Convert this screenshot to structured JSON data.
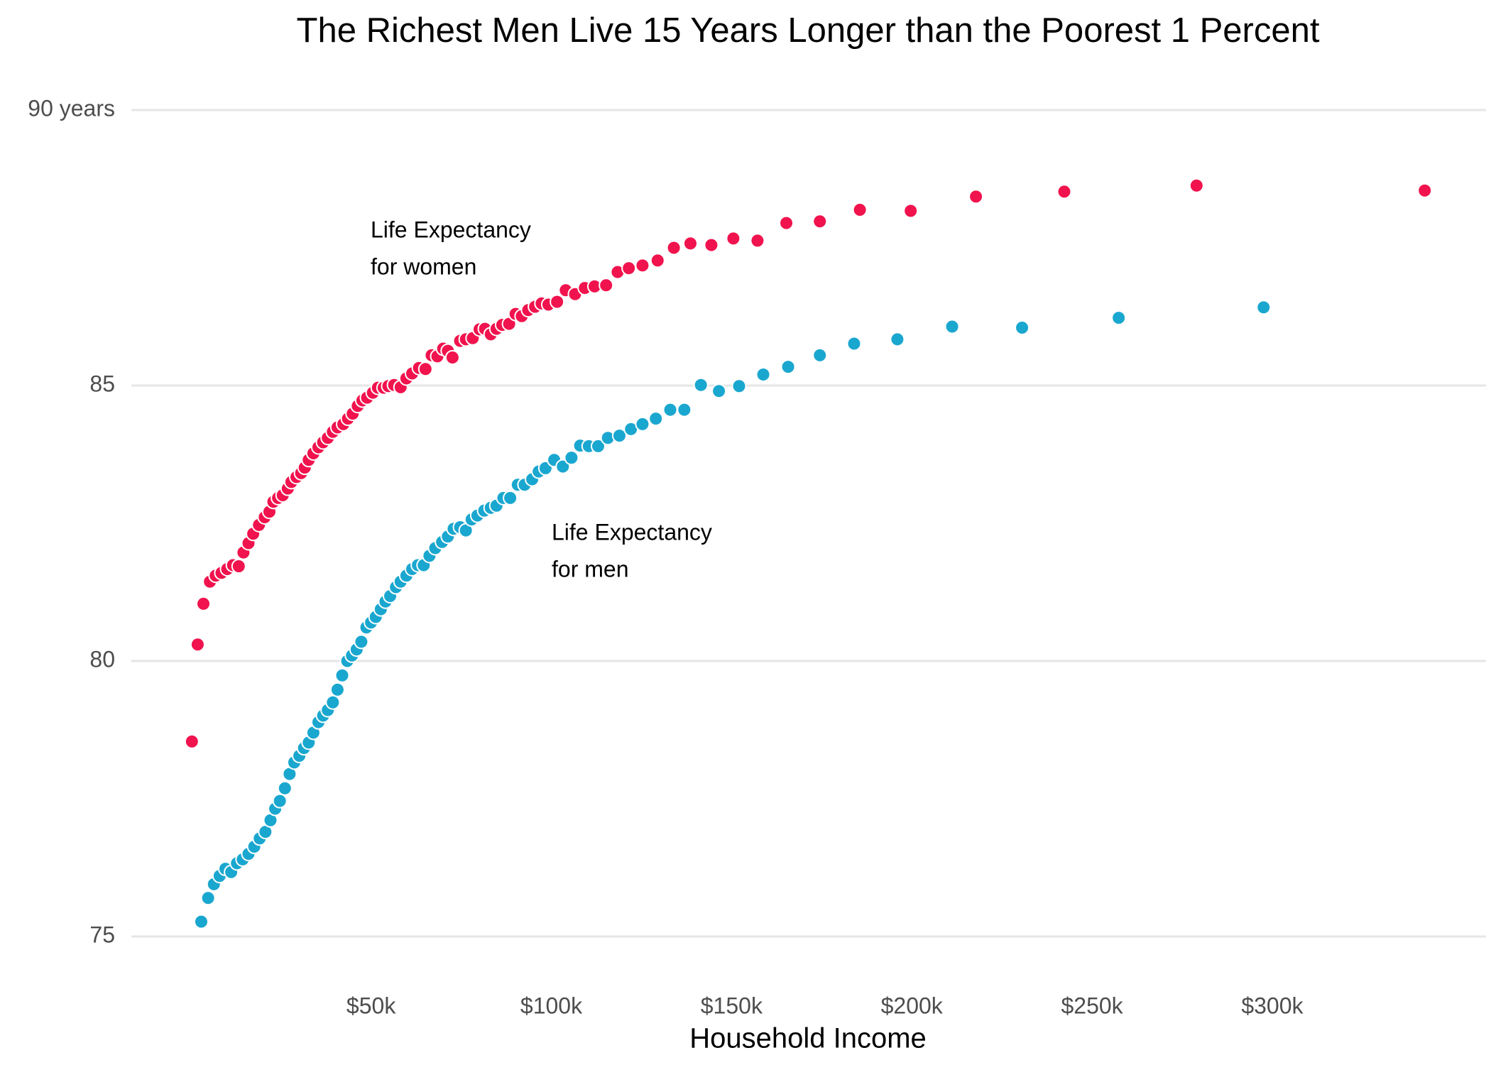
{
  "chart_data": {
    "type": "scatter",
    "title": "The Richest Men Live 15 Years Longer than the Poorest 1 Percent",
    "x_label": "Household Income",
    "xlim": [
      -16.5,
      359.3
    ],
    "ylim": [
      74.4,
      90.2
    ],
    "xticks": [
      {
        "value": 50,
        "label": "$50k"
      },
      {
        "value": 100,
        "label": "$100k"
      },
      {
        "value": 150,
        "label": "$150k"
      },
      {
        "value": 200,
        "label": "$200k"
      },
      {
        "value": 250,
        "label": "$250k"
      },
      {
        "value": 300,
        "label": "$300k"
      }
    ],
    "yticks": [
      75,
      80,
      85,
      {
        "value": 90,
        "label": "90 years"
      }
    ],
    "grid": true,
    "annotations": [
      [
        "Life Expectancy",
        "for women"
      ],
      [
        "Life Expectancy",
        "for men"
      ]
    ],
    "series": [
      {
        "color": "#f0134d",
        "x": [
          0.3,
          1.9,
          3.5,
          5.3,
          6.9,
          8.5,
          10.1,
          11.7,
          13.3,
          14.6,
          16.0,
          17.3,
          18.9,
          20.5,
          21.8,
          22.9,
          24.2,
          25.5,
          26.9,
          27.9,
          29.3,
          30.6,
          31.6,
          32.7,
          34.0,
          35.4,
          36.7,
          38.0,
          39.4,
          40.7,
          42.3,
          43.6,
          44.9,
          46.3,
          47.6,
          48.9,
          50.5,
          51.9,
          53.5,
          54.8,
          56.4,
          58.2,
          59.8,
          61.4,
          63.3,
          65.1,
          66.8,
          68.4,
          70.0,
          71.3,
          72.6,
          74.7,
          76.3,
          78.2,
          80.1,
          81.6,
          83.2,
          84.8,
          86.4,
          88.3,
          90.1,
          91.8,
          93.6,
          95.5,
          97.3,
          99.2,
          101.6,
          104.0,
          106.6,
          109.3,
          112.0,
          115.2,
          118.4,
          121.5,
          125.3,
          129.5,
          134.0,
          138.6,
          144.4,
          150.5,
          157.2,
          165.2,
          174.5,
          185.6,
          199.7,
          217.8,
          242.3,
          279.0,
          342.3
        ],
        "values": [
          78.54,
          80.3,
          81.04,
          81.44,
          81.55,
          81.6,
          81.67,
          81.74,
          81.72,
          81.97,
          82.14,
          82.31,
          82.47,
          82.61,
          82.71,
          82.89,
          82.96,
          83.01,
          83.13,
          83.25,
          83.34,
          83.41,
          83.51,
          83.65,
          83.77,
          83.88,
          83.97,
          84.05,
          84.16,
          84.24,
          84.3,
          84.4,
          84.49,
          84.63,
          84.73,
          84.78,
          84.87,
          84.96,
          84.96,
          84.99,
          85.01,
          84.97,
          85.13,
          85.22,
          85.32,
          85.3,
          85.55,
          85.53,
          85.67,
          85.63,
          85.51,
          85.81,
          85.84,
          85.86,
          86.02,
          86.03,
          85.93,
          86.03,
          86.1,
          86.12,
          86.3,
          86.26,
          86.37,
          86.43,
          86.49,
          86.47,
          86.52,
          86.73,
          86.66,
          86.77,
          86.8,
          86.82,
          87.06,
          87.13,
          87.18,
          87.27,
          87.5,
          87.58,
          87.55,
          87.67,
          87.63,
          87.95,
          87.98,
          88.19,
          88.17,
          88.43,
          88.52,
          88.63,
          88.54
        ]
      },
      {
        "color": "#1aa7cf",
        "x": [
          2.9,
          4.8,
          6.4,
          8.0,
          9.6,
          11.2,
          12.8,
          14.4,
          16.0,
          17.6,
          19.1,
          20.7,
          22.1,
          23.4,
          24.7,
          26.1,
          27.4,
          28.7,
          30.1,
          31.4,
          32.7,
          34.0,
          35.4,
          36.7,
          38.0,
          39.4,
          40.7,
          42.0,
          43.4,
          44.7,
          46.0,
          47.3,
          48.7,
          50.0,
          51.3,
          52.7,
          54.0,
          55.3,
          56.9,
          58.2,
          59.8,
          61.4,
          63.0,
          64.6,
          66.2,
          67.8,
          69.7,
          71.3,
          72.9,
          74.7,
          76.3,
          77.9,
          79.5,
          81.4,
          83.2,
          84.8,
          86.7,
          88.6,
          90.7,
          92.6,
          94.7,
          96.5,
          98.4,
          100.8,
          103.2,
          105.6,
          108.0,
          110.4,
          113.0,
          115.7,
          118.9,
          122.1,
          125.3,
          129.0,
          133.0,
          136.9,
          141.5,
          146.5,
          152.1,
          158.8,
          165.7,
          174.5,
          184.0,
          196.0,
          211.2,
          230.6,
          257.4,
          297.6
        ],
        "values": [
          75.27,
          75.7,
          75.95,
          76.1,
          76.23,
          76.17,
          76.33,
          76.4,
          76.5,
          76.63,
          76.78,
          76.9,
          77.11,
          77.32,
          77.46,
          77.69,
          77.95,
          78.16,
          78.28,
          78.42,
          78.52,
          78.7,
          78.89,
          79.01,
          79.11,
          79.25,
          79.48,
          79.74,
          80.0,
          80.1,
          80.21,
          80.35,
          80.61,
          80.7,
          80.8,
          80.94,
          81.08,
          81.18,
          81.34,
          81.44,
          81.55,
          81.67,
          81.74,
          81.74,
          81.91,
          82.05,
          82.16,
          82.26,
          82.4,
          82.43,
          82.37,
          82.57,
          82.64,
          82.73,
          82.78,
          82.82,
          82.96,
          82.96,
          83.2,
          83.2,
          83.3,
          83.44,
          83.5,
          83.65,
          83.53,
          83.69,
          83.91,
          83.9,
          83.9,
          84.05,
          84.09,
          84.21,
          84.3,
          84.4,
          84.56,
          84.56,
          85.01,
          84.9,
          84.99,
          85.2,
          85.34,
          85.55,
          85.76,
          85.84,
          86.07,
          86.05,
          86.23,
          86.42
        ]
      }
    ]
  }
}
